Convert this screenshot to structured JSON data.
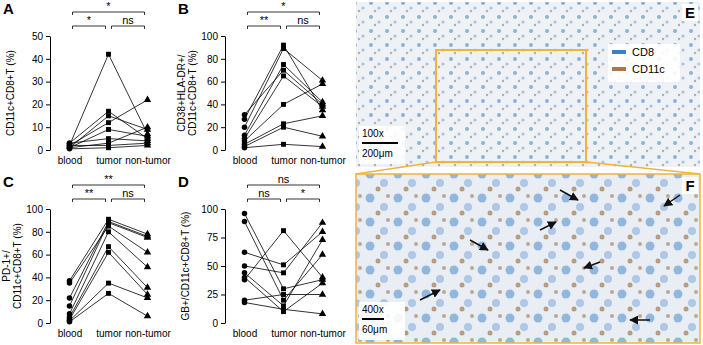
{
  "chart_data": [
    {
      "type": "line",
      "title": "A",
      "y_label": "CD11c+CD8+T (%)",
      "categories": [
        "blood",
        "tumor",
        "non-tumor"
      ],
      "series": [
        {
          "values": [
            2,
            42,
            7
          ]
        },
        {
          "values": [
            3,
            17,
            5
          ]
        },
        {
          "values": [
            1,
            15,
            9
          ]
        },
        {
          "values": [
            2,
            12,
            22
          ]
        },
        {
          "values": [
            1,
            9,
            6
          ]
        },
        {
          "values": [
            3,
            5,
            4
          ]
        },
        {
          "values": [
            1,
            3,
            10
          ]
        },
        {
          "values": [
            2,
            2,
            3
          ]
        },
        {
          "values": [
            0.5,
            1,
            2
          ]
        }
      ],
      "ylim": [
        0,
        50
      ],
      "yticks": [
        0,
        10,
        20,
        30,
        40,
        50
      ],
      "annotations": [
        {
          "pair": [
            "blood",
            "tumor"
          ],
          "text": "*"
        },
        {
          "pair": [
            "tumor",
            "non-tumor"
          ],
          "text": "ns"
        },
        {
          "pair": [
            "blood",
            "non-tumor"
          ],
          "text": "*"
        }
      ]
    },
    {
      "type": "line",
      "title": "B",
      "y_label": "CD38+HLA-DR+/CD11c+CD8+T (%)",
      "categories": [
        "blood",
        "tumor",
        "non-tumor"
      ],
      "series": [
        {
          "values": [
            31,
            70,
            40
          ]
        },
        {
          "values": [
            27,
            92,
            35
          ]
        },
        {
          "values": [
            20,
            89,
            61
          ]
        },
        {
          "values": [
            13,
            75,
            42
          ]
        },
        {
          "values": [
            10,
            65,
            38
          ]
        },
        {
          "values": [
            8,
            40,
            58
          ]
        },
        {
          "values": [
            5,
            23,
            30
          ]
        },
        {
          "values": [
            3,
            20,
            12
          ]
        },
        {
          "values": [
            2,
            5,
            3
          ]
        }
      ],
      "ylim": [
        0,
        100
      ],
      "yticks": [
        0,
        20,
        40,
        60,
        80,
        100
      ],
      "annotations": [
        {
          "pair": [
            "blood",
            "tumor"
          ],
          "text": "**"
        },
        {
          "pair": [
            "tumor",
            "non-tumor"
          ],
          "text": "ns"
        },
        {
          "pair": [
            "blood",
            "non-tumor"
          ],
          "text": "*"
        }
      ]
    },
    {
      "type": "line",
      "title": "C",
      "y_label": "PD-1+/CD11c+CD8+T (%)",
      "categories": [
        "blood",
        "tumor",
        "non-tumor"
      ],
      "series": [
        {
          "values": [
            37,
            91,
            78
          ]
        },
        {
          "values": [
            35,
            85,
            62
          ]
        },
        {
          "values": [
            22,
            89,
            76
          ]
        },
        {
          "values": [
            15,
            88,
            75
          ]
        },
        {
          "values": [
            8,
            80,
            49
          ]
        },
        {
          "values": [
            5,
            67,
            31
          ]
        },
        {
          "values": [
            3,
            62,
            25
          ]
        },
        {
          "values": [
            2,
            35,
            22
          ]
        },
        {
          "values": [
            1,
            26,
            6
          ]
        }
      ],
      "ylim": [
        0,
        100
      ],
      "yticks": [
        0,
        20,
        40,
        60,
        80,
        100
      ],
      "annotations": [
        {
          "pair": [
            "blood",
            "tumor"
          ],
          "text": "**"
        },
        {
          "pair": [
            "tumor",
            "non-tumor"
          ],
          "text": "ns"
        },
        {
          "pair": [
            "blood",
            "non-tumor"
          ],
          "text": "**"
        }
      ]
    },
    {
      "type": "line",
      "title": "D",
      "y_label": "GB+/CD11c+CD8+T (%)",
      "categories": [
        "blood",
        "tumor",
        "non-tumor"
      ],
      "series": [
        {
          "values": [
            96,
            30,
            38
          ]
        },
        {
          "values": [
            89,
            20,
            60
          ]
        },
        {
          "values": [
            62,
            51,
            80
          ]
        },
        {
          "values": [
            50,
            44,
            88
          ]
        },
        {
          "values": [
            44,
            15,
            73
          ]
        },
        {
          "values": [
            40,
            10,
            35
          ]
        },
        {
          "values": [
            38,
            81,
            40
          ]
        },
        {
          "values": [
            20,
            25,
            25
          ]
        },
        {
          "values": [
            18,
            12,
            8
          ]
        }
      ],
      "ylim": [
        0,
        100
      ],
      "yticks": [
        0,
        25,
        50,
        75,
        100
      ],
      "annotations": [
        {
          "pair": [
            "blood",
            "tumor"
          ],
          "text": "ns"
        },
        {
          "pair": [
            "tumor",
            "non-tumor"
          ],
          "text": "*"
        },
        {
          "pair": [
            "blood",
            "non-tumor"
          ],
          "text": "ns"
        }
      ]
    }
  ],
  "images": [
    {
      "panel": "E",
      "magnification": "100x",
      "scale_bar": "200μm",
      "legend": [
        {
          "name": "CD8",
          "color": "#3b7fc4"
        },
        {
          "name": "CD11c",
          "color": "#a27a4e"
        }
      ]
    },
    {
      "panel": "F",
      "magnification": "400x",
      "scale_bar": "60μm"
    }
  ]
}
